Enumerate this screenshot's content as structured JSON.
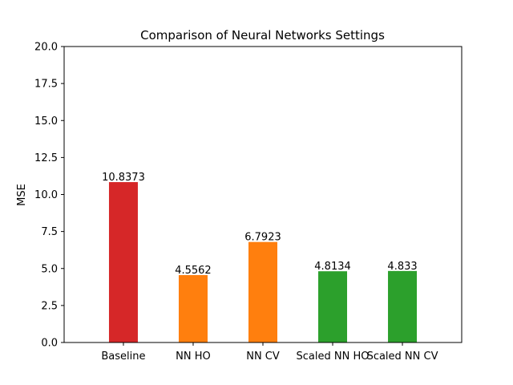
{
  "chart_data": {
    "type": "bar",
    "title": "Comparison of Neural Networks Settings",
    "xlabel": "",
    "ylabel": "MSE",
    "categories": [
      "Baseline",
      "NN HO",
      "NN CV",
      "Scaled NN HO",
      "Scaled NN CV"
    ],
    "values": [
      10.8373,
      4.5562,
      6.7923,
      4.8134,
      4.833
    ],
    "value_labels": [
      "10.8373",
      "4.5562",
      "6.7923",
      "4.8134",
      "4.833"
    ],
    "colors": [
      "#d62728",
      "#ff7f0e",
      "#ff7f0e",
      "#2ca02c",
      "#2ca02c"
    ],
    "ylim": [
      0,
      20
    ],
    "yticks": [
      0.0,
      2.5,
      5.0,
      7.5,
      10.0,
      12.5,
      15.0,
      17.5,
      20.0
    ],
    "ytick_labels": [
      "0.0",
      "2.5",
      "5.0",
      "7.5",
      "10.0",
      "12.5",
      "15.0",
      "17.5",
      "20.0"
    ],
    "grid": false,
    "legend": "none"
  }
}
